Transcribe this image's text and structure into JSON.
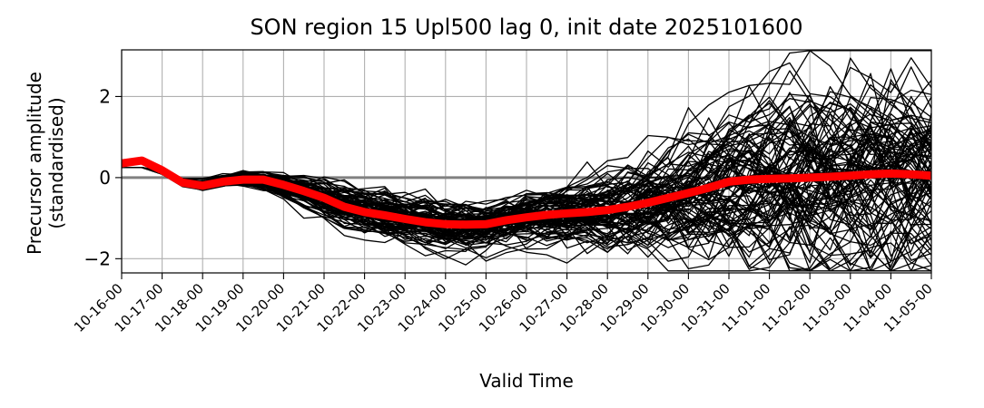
{
  "chart_data": {
    "type": "line",
    "title": "SON region 15 Upl500 lag 0, init date 2025101600",
    "xlabel": "Valid Time",
    "ylabel": "Precursor amplitude\n(standardised)",
    "x_tick_labels": [
      "10-16-00",
      "10-17-00",
      "10-18-00",
      "10-19-00",
      "10-20-00",
      "10-21-00",
      "10-22-00",
      "10-23-00",
      "10-24-00",
      "10-25-00",
      "10-26-00",
      "10-27-00",
      "10-28-00",
      "10-29-00",
      "10-30-00",
      "10-31-00",
      "11-01-00",
      "11-02-00",
      "11-03-00",
      "11-04-00",
      "11-05-00"
    ],
    "x_range_days": [
      0,
      20
    ],
    "y_ticks": [
      -2,
      0,
      2
    ],
    "y_tick_labels": [
      "−2",
      "0",
      "2"
    ],
    "ylim": [
      -2.35,
      3.15
    ],
    "grid": true,
    "zero_line": {
      "y": 0,
      "color": "#808080"
    },
    "ensemble": {
      "color": "#000000",
      "member_count": 100,
      "step_days": 0.5,
      "mean_path": [
        0.25,
        0.25,
        0.12,
        -0.12,
        -0.18,
        -0.08,
        -0.02,
        -0.06,
        -0.2,
        -0.35,
        -0.5,
        -0.68,
        -0.8,
        -0.9,
        -1.0,
        -1.08,
        -1.15,
        -1.18,
        -1.2,
        -1.12,
        -1.05,
        -0.98,
        -0.92,
        -0.88,
        -0.85,
        -0.8,
        -0.72,
        -0.62,
        -0.48,
        -0.35,
        -0.22,
        -0.12,
        -0.05,
        0.0,
        0.05,
        0.05,
        0.05,
        0.05,
        0.05,
        0.05,
        0.05
      ],
      "spread_path": [
        0.0,
        0.0,
        0.02,
        0.05,
        0.07,
        0.08,
        0.09,
        0.1,
        0.13,
        0.17,
        0.2,
        0.23,
        0.25,
        0.27,
        0.28,
        0.3,
        0.3,
        0.3,
        0.3,
        0.3,
        0.31,
        0.33,
        0.36,
        0.4,
        0.46,
        0.52,
        0.6,
        0.68,
        0.76,
        0.84,
        0.9,
        0.96,
        1.02,
        1.08,
        1.12,
        1.15,
        1.18,
        1.2,
        1.22,
        1.22,
        1.22
      ]
    },
    "highlight_series": {
      "name": "",
      "color": "#ff0000",
      "x_days": [
        0,
        0.5,
        1,
        1.5,
        2,
        2.5,
        3,
        3.5,
        4,
        4.5,
        5,
        5.5,
        6,
        6.5,
        7,
        7.5,
        8,
        8.5,
        9,
        9.5,
        10,
        10.5,
        11,
        11.5,
        12,
        12.5,
        13,
        13.5,
        14,
        14.5,
        15,
        15.5,
        16,
        16.5,
        17,
        17.5,
        18,
        18.5,
        19,
        19.5,
        20
      ],
      "values": [
        0.35,
        0.42,
        0.18,
        -0.12,
        -0.2,
        -0.1,
        -0.05,
        -0.05,
        -0.18,
        -0.33,
        -0.5,
        -0.72,
        -0.85,
        -0.93,
        -1.02,
        -1.1,
        -1.15,
        -1.16,
        -1.15,
        -1.05,
        -0.98,
        -0.92,
        -0.88,
        -0.85,
        -0.8,
        -0.72,
        -0.62,
        -0.5,
        -0.38,
        -0.25,
        -0.1,
        -0.05,
        -0.03,
        -0.02,
        0.0,
        0.02,
        0.05,
        0.08,
        0.1,
        0.08,
        0.05
      ]
    }
  }
}
